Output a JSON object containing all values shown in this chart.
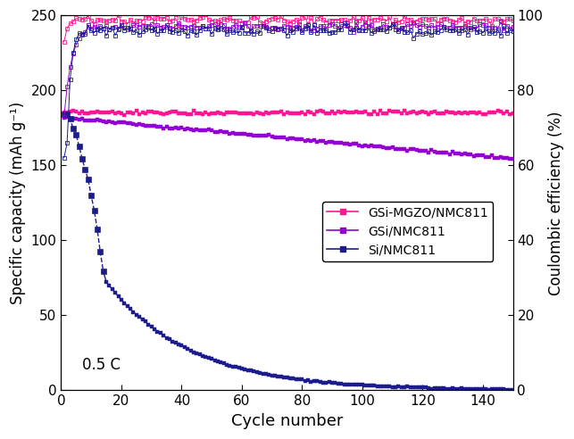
{
  "xlabel": "Cycle number",
  "ylabel_left": "Specific capacity (mAh g⁻¹)",
  "ylabel_right": "Coulombic efficiency (%)",
  "xlim": [
    0,
    150
  ],
  "ylim_left": [
    0,
    250
  ],
  "ylim_right": [
    0,
    100
  ],
  "xticks": [
    0,
    20,
    40,
    60,
    80,
    100,
    120,
    140
  ],
  "yticks_left": [
    0,
    50,
    100,
    150,
    200,
    250
  ],
  "yticks_right": [
    0,
    20,
    40,
    60,
    80,
    100
  ],
  "annotation": "0.5 C",
  "color_mgzo": "#FF1493",
  "color_gsi": "#9400D3",
  "color_si": "#1C1C8C",
  "legend_labels": [
    "GSi-MGZO/NMC811",
    "GSi/NMC811",
    "Si/NMC811"
  ]
}
